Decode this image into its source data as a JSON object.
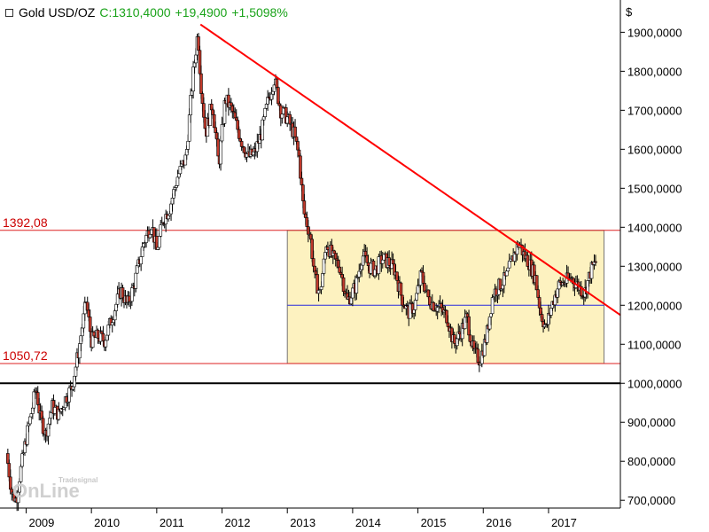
{
  "header": {
    "symbol": "Gold USD/OZ",
    "close": "C:1310,4000",
    "change": "+19,4900",
    "change_pct": "+1,5098%",
    "close_color": "#1aa31a"
  },
  "watermark": {
    "top": "Tradesignal",
    "brand": "OnLine"
  },
  "chart_data": {
    "type": "candlestick",
    "title": "Gold USD/OZ",
    "y_unit": "$",
    "ylim": [
      680,
      1960
    ],
    "y_ticks": [
      "700,0000",
      "800,0000",
      "900,0000",
      "1000,0000",
      "1100,0000",
      "1200,0000",
      "1300,0000",
      "1400,0000",
      "1500,0000",
      "1600,0000",
      "1700,0000",
      "1800,0000",
      "1900,0000"
    ],
    "y_tick_values": [
      700,
      800,
      900,
      1000,
      1100,
      1200,
      1300,
      1400,
      1500,
      1600,
      1700,
      1800,
      1900
    ],
    "x_ticks": [
      "2009",
      "2010",
      "2011",
      "2012",
      "2013",
      "2014",
      "2015",
      "2016",
      "2017"
    ],
    "x_tick_values": [
      2009.0,
      2010.0,
      2011.0,
      2012.0,
      2013.0,
      2014.0,
      2015.0,
      2016.0,
      2017.0
    ],
    "xlim": [
      2008.6,
      2018.1
    ],
    "price_path": [
      [
        2008.7,
        820
      ],
      [
        2008.78,
        720
      ],
      [
        2008.85,
        700
      ],
      [
        2008.9,
        760
      ],
      [
        2009.0,
        860
      ],
      [
        2009.1,
        940
      ],
      [
        2009.15,
        990
      ],
      [
        2009.22,
        910
      ],
      [
        2009.3,
        870
      ],
      [
        2009.4,
        940
      ],
      [
        2009.5,
        920
      ],
      [
        2009.6,
        960
      ],
      [
        2009.7,
        990
      ],
      [
        2009.8,
        1080
      ],
      [
        2009.92,
        1210
      ],
      [
        2010.0,
        1110
      ],
      [
        2010.1,
        1120
      ],
      [
        2010.2,
        1110
      ],
      [
        2010.3,
        1160
      ],
      [
        2010.45,
        1240
      ],
      [
        2010.55,
        1200
      ],
      [
        2010.65,
        1250
      ],
      [
        2010.8,
        1360
      ],
      [
        2010.92,
        1410
      ],
      [
        2011.0,
        1340
      ],
      [
        2011.1,
        1420
      ],
      [
        2011.2,
        1450
      ],
      [
        2011.32,
        1530
      ],
      [
        2011.45,
        1580
      ],
      [
        2011.55,
        1780
      ],
      [
        2011.63,
        1900
      ],
      [
        2011.67,
        1780
      ],
      [
        2011.75,
        1640
      ],
      [
        2011.85,
        1720
      ],
      [
        2011.95,
        1560
      ],
      [
        2012.05,
        1730
      ],
      [
        2012.15,
        1700
      ],
      [
        2012.3,
        1620
      ],
      [
        2012.4,
        1580
      ],
      [
        2012.5,
        1590
      ],
      [
        2012.6,
        1640
      ],
      [
        2012.7,
        1720
      ],
      [
        2012.8,
        1780
      ],
      [
        2012.9,
        1700
      ],
      [
        2013.0,
        1680
      ],
      [
        2013.1,
        1640
      ],
      [
        2013.18,
        1580
      ],
      [
        2013.25,
        1440
      ],
      [
        2013.35,
        1380
      ],
      [
        2013.42,
        1270
      ],
      [
        2013.5,
        1230
      ],
      [
        2013.6,
        1360
      ],
      [
        2013.7,
        1320
      ],
      [
        2013.8,
        1300
      ],
      [
        2013.92,
        1210
      ],
      [
        2014.05,
        1250
      ],
      [
        2014.15,
        1330
      ],
      [
        2014.25,
        1300
      ],
      [
        2014.35,
        1290
      ],
      [
        2014.45,
        1320
      ],
      [
        2014.55,
        1310
      ],
      [
        2014.65,
        1290
      ],
      [
        2014.75,
        1220
      ],
      [
        2014.85,
        1180
      ],
      [
        2014.95,
        1200
      ],
      [
        2015.05,
        1280
      ],
      [
        2015.15,
        1220
      ],
      [
        2015.25,
        1200
      ],
      [
        2015.35,
        1190
      ],
      [
        2015.45,
        1170
      ],
      [
        2015.55,
        1100
      ],
      [
        2015.65,
        1130
      ],
      [
        2015.75,
        1170
      ],
      [
        2015.85,
        1080
      ],
      [
        2015.95,
        1060
      ],
      [
        2016.05,
        1120
      ],
      [
        2016.15,
        1230
      ],
      [
        2016.25,
        1250
      ],
      [
        2016.35,
        1270
      ],
      [
        2016.45,
        1320
      ],
      [
        2016.55,
        1360
      ],
      [
        2016.62,
        1330
      ],
      [
        2016.7,
        1310
      ],
      [
        2016.8,
        1270
      ],
      [
        2016.88,
        1180
      ],
      [
        2016.96,
        1140
      ],
      [
        2017.05,
        1200
      ],
      [
        2017.15,
        1250
      ],
      [
        2017.25,
        1260
      ],
      [
        2017.35,
        1270
      ],
      [
        2017.45,
        1250
      ],
      [
        2017.55,
        1230
      ],
      [
        2017.65,
        1290
      ],
      [
        2017.72,
        1310
      ]
    ],
    "hlines": [
      {
        "label": "1392,08",
        "value": 1392.08,
        "color": "#dd2222"
      },
      {
        "label": "1050,72",
        "value": 1050.72,
        "color": "#dd2222"
      },
      {
        "label": "",
        "value": 1000,
        "color": "#000000"
      },
      {
        "label": "",
        "value": 1200,
        "color": "#2a2adc"
      }
    ],
    "range_box": {
      "x0": 2013.0,
      "x1": 2017.85,
      "low": 1050.72,
      "high": 1392.08,
      "fill": "#fdf2c0",
      "stroke": "#777777"
    },
    "trendline": {
      "p0": [
        2011.67,
        1920
      ],
      "p1": [
        2018.1,
        1175
      ],
      "color": "#ff0000"
    },
    "colors": {
      "up": "#ffffff",
      "down": "#c0392b",
      "wick": "#000000"
    },
    "grid": false
  }
}
